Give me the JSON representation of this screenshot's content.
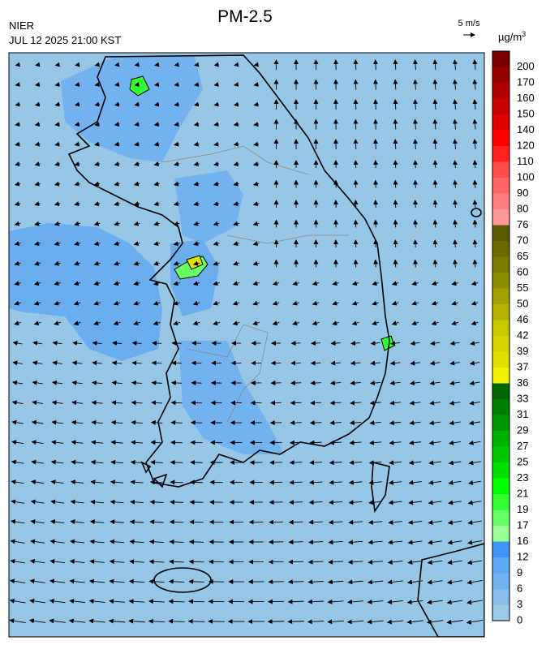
{
  "header": {
    "title": "PM-2.5",
    "agency": "NIER",
    "timestamp": "JUL 12 2025 21:00 KST"
  },
  "wind_scale": {
    "label": "5 m/s"
  },
  "colorbar": {
    "unit": "µg/m",
    "unit_exponent": "3",
    "ticks": [
      0,
      3,
      6,
      9,
      12,
      16,
      17,
      19,
      21,
      23,
      25,
      27,
      29,
      31,
      33,
      36,
      37,
      39,
      42,
      46,
      50,
      55,
      60,
      65,
      70,
      76,
      80,
      90,
      100,
      110,
      120,
      140,
      150,
      160,
      170,
      200
    ],
    "colors": [
      "#9bc9e6",
      "#86bdec",
      "#72b2ef",
      "#5ea7f2",
      "#3f96f5",
      "#99ff99",
      "#66ff66",
      "#33ff33",
      "#00ff00",
      "#00e000",
      "#00c800",
      "#00b000",
      "#009600",
      "#007e00",
      "#006600",
      "#f0f000",
      "#e0e000",
      "#d4d400",
      "#c8c800",
      "#b4b400",
      "#a0a000",
      "#8c8c00",
      "#7a7a00",
      "#6a6a00",
      "#5a5a00",
      "#ff9999",
      "#ff7f7f",
      "#ff6666",
      "#ff4c4c",
      "#ff2020",
      "#ff0000",
      "#e00000",
      "#c80000",
      "#b00000",
      "#960000",
      "#7a0000"
    ]
  }
}
